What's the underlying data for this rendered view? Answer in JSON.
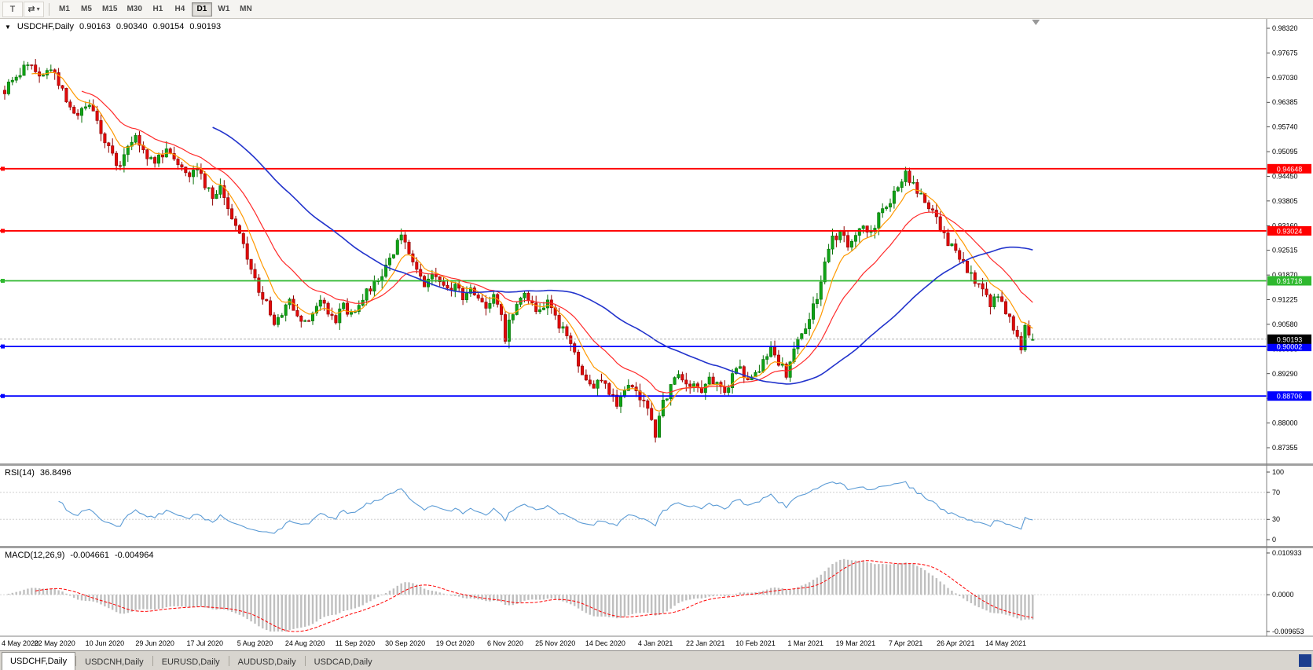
{
  "toolbar": {
    "tool_buttons": [
      {
        "name": "chart-templates",
        "glyph": "T"
      },
      {
        "name": "cycle-symbols",
        "glyph": "⇄"
      },
      {
        "name": "dropdown-caret",
        "glyph": "▾"
      }
    ],
    "timeframes": [
      "M1",
      "M5",
      "M15",
      "M30",
      "H1",
      "H4",
      "D1",
      "W1",
      "MN"
    ],
    "active_timeframe": "D1"
  },
  "chart": {
    "collapse_glyph": "▼",
    "symbol_title": "USDCHF,Daily",
    "open": "0.90163",
    "high": "0.90340",
    "low": "0.90154",
    "close": "0.90193"
  },
  "chart_data": {
    "type": "candlestick",
    "symbol": "USDCHF",
    "timeframe": "Daily",
    "candle_count": 268,
    "y_axis": {
      "top_value": 0.9832,
      "bottom_value": 0.87355,
      "ticks": [
        "0.98320",
        "0.97675",
        "0.97030",
        "0.96385",
        "0.95740",
        "0.95095",
        "0.94450",
        "0.93805",
        "0.93160",
        "0.92515",
        "0.91870",
        "0.91225",
        "0.90580",
        "0.89935",
        "0.89290",
        "0.88645",
        "0.88000",
        "0.87355"
      ]
    },
    "x_labels": [
      "4 May 2020",
      "22 May 2020",
      "10 Jun 2020",
      "29 Jun 2020",
      "17 Jul 2020",
      "5 Aug 2020",
      "24 Aug 2020",
      "11 Sep 2020",
      "30 Sep 2020",
      "19 Oct 2020",
      "6 Nov 2020",
      "25 Nov 2020",
      "14 Dec 2020",
      "4 Jan 2021",
      "22 Jan 2021",
      "10 Feb 2021",
      "1 Mar 2021",
      "19 Mar 2021",
      "7 Apr 2021",
      "26 Apr 2021",
      "14 May 2021"
    ],
    "x_label_candle_step": 13,
    "price_keypoints": [
      [
        0,
        0.967
      ],
      [
        3,
        0.97
      ],
      [
        6,
        0.9745
      ],
      [
        9,
        0.97
      ],
      [
        12,
        0.973
      ],
      [
        14,
        0.969
      ],
      [
        16,
        0.964
      ],
      [
        19,
        0.9605
      ],
      [
        22,
        0.9635
      ],
      [
        25,
        0.956
      ],
      [
        28,
        0.95
      ],
      [
        30,
        0.9465
      ],
      [
        32,
        0.953
      ],
      [
        34,
        0.9555
      ],
      [
        36,
        0.951
      ],
      [
        39,
        0.948
      ],
      [
        42,
        0.952
      ],
      [
        45,
        0.9485
      ],
      [
        48,
        0.9455
      ],
      [
        50,
        0.9475
      ],
      [
        52,
        0.942
      ],
      [
        54,
        0.9395
      ],
      [
        56,
        0.941
      ],
      [
        58,
        0.936
      ],
      [
        60,
        0.932
      ],
      [
        62,
        0.926
      ],
      [
        64,
        0.92
      ],
      [
        66,
        0.915
      ],
      [
        68,
        0.911
      ],
      [
        70,
        0.906
      ],
      [
        72,
        0.9085
      ],
      [
        74,
        0.912
      ],
      [
        76,
        0.909
      ],
      [
        78,
        0.906
      ],
      [
        80,
        0.908
      ],
      [
        82,
        0.912
      ],
      [
        84,
        0.9095
      ],
      [
        86,
        0.907
      ],
      [
        88,
        0.9105
      ],
      [
        90,
        0.9085
      ],
      [
        92,
        0.911
      ],
      [
        94,
        0.914
      ],
      [
        96,
        0.916
      ],
      [
        98,
        0.919
      ],
      [
        100,
        0.923
      ],
      [
        102,
        0.927
      ],
      [
        103,
        0.9295
      ],
      [
        105,
        0.924
      ],
      [
        107,
        0.919
      ],
      [
        109,
        0.916
      ],
      [
        111,
        0.92
      ],
      [
        113,
        0.9175
      ],
      [
        115,
        0.9145
      ],
      [
        117,
        0.916
      ],
      [
        119,
        0.913
      ],
      [
        121,
        0.9155
      ],
      [
        123,
        0.913
      ],
      [
        125,
        0.91
      ],
      [
        127,
        0.9135
      ],
      [
        129,
        0.908
      ],
      [
        130,
        0.901
      ],
      [
        131,
        0.906
      ],
      [
        133,
        0.912
      ],
      [
        135,
        0.9145
      ],
      [
        137,
        0.911
      ],
      [
        139,
        0.9085
      ],
      [
        141,
        0.911
      ],
      [
        143,
        0.9075
      ],
      [
        145,
        0.904
      ],
      [
        147,
        0.9
      ],
      [
        149,
        0.8955
      ],
      [
        151,
        0.8915
      ],
      [
        153,
        0.889
      ],
      [
        155,
        0.892
      ],
      [
        157,
        0.888
      ],
      [
        159,
        0.8855
      ],
      [
        161,
        0.8885
      ],
      [
        163,
        0.8905
      ],
      [
        165,
        0.887
      ],
      [
        167,
        0.884
      ],
      [
        169,
        0.877
      ],
      [
        171,
        0.885
      ],
      [
        173,
        0.8895
      ],
      [
        175,
        0.8925
      ],
      [
        177,
        0.8895
      ],
      [
        179,
        0.891
      ],
      [
        181,
        0.8885
      ],
      [
        183,
        0.892
      ],
      [
        185,
        0.8895
      ],
      [
        187,
        0.888
      ],
      [
        189,
        0.892
      ],
      [
        191,
        0.895
      ],
      [
        193,
        0.891
      ],
      [
        195,
        0.8925
      ],
      [
        197,
        0.896
      ],
      [
        199,
        0.8995
      ],
      [
        201,
        0.896
      ],
      [
        203,
        0.893
      ],
      [
        205,
        0.8995
      ],
      [
        207,
        0.9035
      ],
      [
        209,
        0.907
      ],
      [
        211,
        0.913
      ],
      [
        213,
        0.921
      ],
      [
        215,
        0.928
      ],
      [
        217,
        0.93
      ],
      [
        219,
        0.9265
      ],
      [
        221,
        0.9295
      ],
      [
        223,
        0.932
      ],
      [
        225,
        0.929
      ],
      [
        227,
        0.934
      ],
      [
        229,
        0.937
      ],
      [
        231,
        0.94
      ],
      [
        233,
        0.944
      ],
      [
        234,
        0.946
      ],
      [
        236,
        0.942
      ],
      [
        238,
        0.94
      ],
      [
        240,
        0.9365
      ],
      [
        242,
        0.933
      ],
      [
        244,
        0.929
      ],
      [
        246,
        0.926
      ],
      [
        248,
        0.923
      ],
      [
        250,
        0.92
      ],
      [
        252,
        0.9165
      ],
      [
        254,
        0.914
      ],
      [
        256,
        0.911
      ],
      [
        258,
        0.913
      ],
      [
        260,
        0.9095
      ],
      [
        262,
        0.905
      ],
      [
        264,
        0.9
      ],
      [
        265,
        0.9045
      ],
      [
        267,
        0.90193
      ]
    ],
    "last_candle": {
      "open": 0.90163,
      "high": 0.9034,
      "low": 0.90154,
      "close": 0.90193
    },
    "horizontal_lines": [
      {
        "price": 0.94648,
        "label": "0.94648",
        "color": "#FF0000"
      },
      {
        "price": 0.93024,
        "label": "0.93024",
        "color": "#FF0000"
      },
      {
        "price": 0.91718,
        "label": "0.91718",
        "color": "#2EB82E"
      },
      {
        "price": 0.90002,
        "label": "0.90002",
        "color": "#0000FF"
      },
      {
        "price": 0.88706,
        "label": "0.88706",
        "color": "#0000FF"
      }
    ],
    "current_price": {
      "value": 0.90193,
      "label": "0.90193",
      "tag_bg": "#000000",
      "line_color": "#B0B0B0"
    },
    "candle_colors": {
      "up": "#0FA316",
      "up_stroke": "#067006",
      "down": "#E00A0A",
      "down_stroke": "#8F0000"
    },
    "moving_averages": [
      {
        "name": "fast-ma",
        "period": 8,
        "method": "ema",
        "color": "#FF9900",
        "width": 1.2
      },
      {
        "name": "mid-ma",
        "period": 21,
        "method": "ema",
        "color": "#FF2A2A",
        "width": 1.2
      },
      {
        "name": "slow-ma",
        "period": 55,
        "method": "sma",
        "color": "#2233CC",
        "width": 1.6
      }
    ],
    "rsi": {
      "name_label": "RSI(14)",
      "value_label": "36.8496",
      "period": 14,
      "levels": [
        70,
        30
      ],
      "axis_ticks": [
        {
          "v": 100,
          "t": "100"
        },
        {
          "v": 70,
          "t": "70"
        },
        {
          "v": 30,
          "t": "30"
        },
        {
          "v": 0,
          "t": "0"
        }
      ],
      "line_color": "#5B9BD5"
    },
    "macd": {
      "name_label": "MACD(12,26,9)",
      "value_label_main": "-0.004661",
      "value_label_signal": "-0.004964",
      "fast": 12,
      "slow": 26,
      "signal": 9,
      "range": [
        -0.009653,
        0.010933
      ],
      "axis_ticks": [
        {
          "v": 0.010933,
          "t": "0.010933"
        },
        {
          "v": 0,
          "t": "0.0000"
        },
        {
          "v": -0.009653,
          "t": "-0.009653"
        }
      ],
      "histogram_color": "#BFBFBF",
      "signal_color": "#FF0000"
    }
  },
  "tabs": [
    {
      "label": "USDCHF,Daily",
      "active": true
    },
    {
      "label": "USDCNH,Daily",
      "active": false
    },
    {
      "label": "EURUSD,Daily",
      "active": false
    },
    {
      "label": "AUDUSD,Daily",
      "active": false
    },
    {
      "label": "USDCAD,Daily",
      "active": false
    }
  ]
}
